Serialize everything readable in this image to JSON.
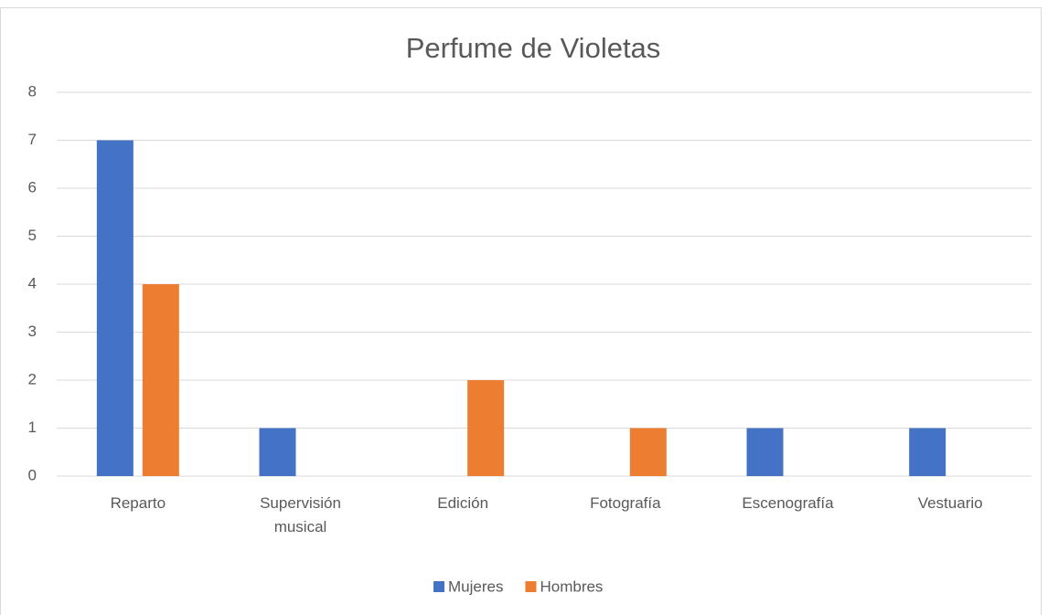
{
  "chart_data": {
    "type": "bar",
    "title": "Perfume de Violetas",
    "categories": [
      "Reparto",
      "Supervisión musical",
      "Edición",
      "Fotografía",
      "Escenografía",
      "Vestuario"
    ],
    "series": [
      {
        "name": "Mujeres",
        "color": "#4472c4",
        "values": [
          7,
          1,
          0,
          0,
          1,
          1
        ]
      },
      {
        "name": "Hombres",
        "color": "#ed7d31",
        "values": [
          4,
          0,
          2,
          1,
          0,
          0
        ]
      }
    ],
    "ylim": [
      0,
      8
    ],
    "yticks": [
      0,
      1,
      2,
      3,
      4,
      5,
      6,
      7,
      8
    ],
    "grid": true,
    "legend": "bottom"
  }
}
